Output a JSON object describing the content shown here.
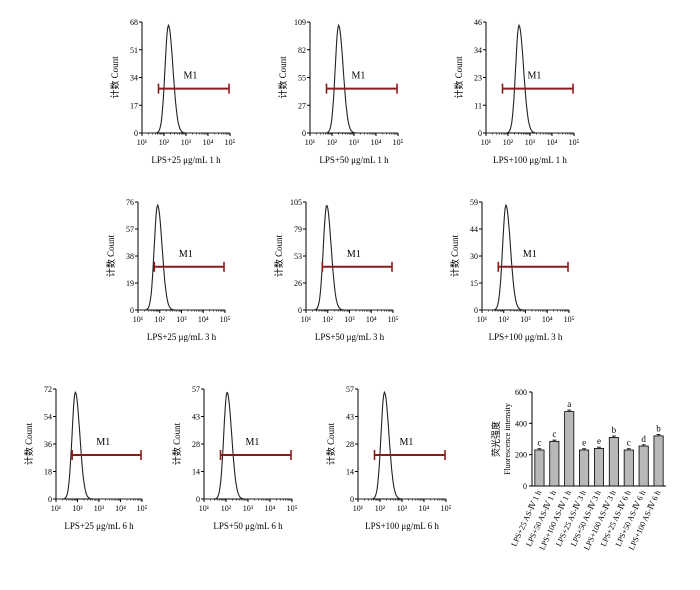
{
  "colors": {
    "gate": "#8b1a1a",
    "bar_fill": "#b8b8b8",
    "axis": "#000000",
    "curve": "#222222"
  },
  "chart_data": [
    {
      "type": "histogram",
      "ylabel": "计数 Count",
      "title": "LPS+25 μg/mL 1 h",
      "y_ticks": [
        0,
        17,
        34,
        51,
        68
      ],
      "x_ticks": [
        "10¹",
        "10²",
        "10³",
        "10⁴",
        "10⁵"
      ],
      "gate_label": "M1",
      "peak": 2.2
    },
    {
      "type": "histogram",
      "ylabel": "计数 Count",
      "title": "LPS+50 μg/mL 1 h",
      "y_ticks": [
        0,
        27,
        55,
        82,
        109
      ],
      "x_ticks": [
        "10¹",
        "10²",
        "10³",
        "10⁴",
        "10⁵"
      ],
      "gate_label": "M1",
      "peak": 2.3
    },
    {
      "type": "histogram",
      "ylabel": "计数 Count",
      "title": "LPS+100 μg/mL 1 h",
      "y_ticks": [
        0,
        11,
        23,
        34,
        46
      ],
      "x_ticks": [
        "10¹",
        "10²",
        "10³",
        "10⁴",
        "10⁵"
      ],
      "gate_label": "M1",
      "peak": 2.5
    },
    {
      "type": "histogram",
      "ylabel": "计数 Count",
      "title": "LPS+25 μg/mL 3 h",
      "y_ticks": [
        0,
        19,
        38,
        57,
        76
      ],
      "x_ticks": [
        "10¹",
        "10²",
        "10³",
        "10⁴",
        "10⁵"
      ],
      "gate_label": "M1",
      "peak": 1.9
    },
    {
      "type": "histogram",
      "ylabel": "计数 Count",
      "title": "LPS+50 μg/mL 3 h",
      "y_ticks": [
        0,
        26,
        53,
        79,
        105
      ],
      "x_ticks": [
        "10¹",
        "10²",
        "10³",
        "10⁴",
        "10⁵"
      ],
      "gate_label": "M1",
      "peak": 1.95
    },
    {
      "type": "histogram",
      "ylabel": "计数 Count",
      "title": "LPS+100 μg/mL 3 h",
      "y_ticks": [
        0,
        15,
        30,
        44,
        59
      ],
      "x_ticks": [
        "10¹",
        "10²",
        "10³",
        "10⁴",
        "10⁵"
      ],
      "gate_label": "M1",
      "peak": 2.1
    },
    {
      "type": "histogram",
      "ylabel": "计数 Count",
      "title": "LPS+25 μg/mL 6 h",
      "y_ticks": [
        0,
        18,
        36,
        54,
        72
      ],
      "x_ticks": [
        "10¹",
        "10²",
        "10³",
        "10⁴",
        "10⁵"
      ],
      "gate_label": "M1",
      "peak": 1.9
    },
    {
      "type": "histogram",
      "ylabel": "计数 Count",
      "title": "LPS+50 μg/mL 6 h",
      "y_ticks": [
        0,
        14,
        28,
        43,
        57
      ],
      "x_ticks": [
        "10¹",
        "10²",
        "10³",
        "10⁴",
        "10⁵"
      ],
      "gate_label": "M1",
      "peak": 2.05
    },
    {
      "type": "histogram",
      "ylabel": "计数 Count",
      "title": "LPS+100 μg/mL 6 h",
      "y_ticks": [
        0,
        14,
        28,
        43,
        57
      ],
      "x_ticks": [
        "10¹",
        "10²",
        "10³",
        "10⁴",
        "10⁵"
      ],
      "gate_label": "M1",
      "peak": 2.2
    },
    {
      "type": "bar",
      "ylabel": "荧光强度",
      "ylabel2": "Fluorescence intensity",
      "ylim": [
        0,
        600
      ],
      "y_ticks": [
        0,
        200,
        400,
        600
      ],
      "categories": [
        "LPS+25 AS-Ⅳ 1 h",
        "LPS+50 AS-Ⅳ 1 h",
        "LPS+100 AS-Ⅳ 1 h",
        "LPS+25 AS-Ⅳ 3 h",
        "LPS+50 AS-Ⅳ 3 h",
        "LPS+100 AS-Ⅳ 3 h",
        "LPS+25 AS-Ⅳ 6 h",
        "LPS+50 AS-Ⅳ 6 h",
        "LPS+100 AS-Ⅳ 6 h"
      ],
      "values": [
        230,
        285,
        475,
        230,
        240,
        310,
        230,
        255,
        320
      ],
      "errors": [
        8,
        8,
        10,
        8,
        8,
        9,
        8,
        8,
        9
      ],
      "significance": [
        "c",
        "c",
        "a",
        "e",
        "e",
        "b",
        "c",
        "d",
        "b"
      ]
    }
  ]
}
